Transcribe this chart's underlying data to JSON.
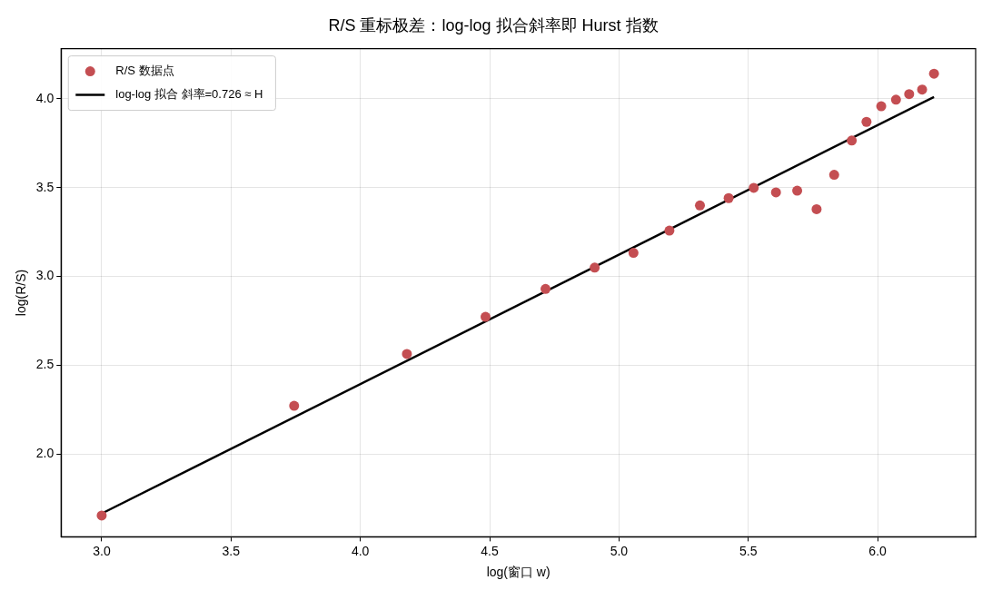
{
  "chart_data": {
    "type": "scatter",
    "title": "R/S 重标极差：log-log 拟合斜率即 Hurst 指数",
    "xlabel": "log(窗口 w)",
    "ylabel": "log(R/S)",
    "series": [
      {
        "name": "R/S 数据点",
        "color": "#c44e52",
        "marker": "circle",
        "x": [
          3.0,
          3.744,
          4.18,
          4.484,
          4.716,
          4.906,
          5.056,
          5.195,
          5.313,
          5.424,
          5.521,
          5.607,
          5.689,
          5.764,
          5.832,
          5.9,
          5.957,
          6.014,
          6.071,
          6.122,
          6.172,
          6.218
        ],
        "values": [
          1.655,
          2.272,
          2.564,
          2.773,
          2.93,
          3.05,
          3.133,
          3.258,
          3.4,
          3.441,
          3.499,
          3.473,
          3.483,
          3.379,
          3.572,
          3.765,
          3.87,
          3.958,
          3.995,
          4.026,
          4.052,
          4.141
        ]
      },
      {
        "name": "log-log 拟合 斜率=0.726 ≈ H",
        "type": "line",
        "color": "#000000",
        "marker": "none",
        "line_style": "solid",
        "x": [
          3.0,
          6.218
        ],
        "values": [
          1.666,
          4.01
        ]
      }
    ],
    "xlim": [
      2.843,
      6.379
    ],
    "ylim": [
      1.535,
      4.282
    ],
    "xticks": [
      {
        "value": 3,
        "label": "3.0"
      },
      {
        "value": 3.5,
        "label": "3.5"
      },
      {
        "value": 4,
        "label": "4.0"
      },
      {
        "value": 4.5,
        "label": "4.5"
      },
      {
        "value": 5,
        "label": "5.0"
      },
      {
        "value": 5.5,
        "label": "5.5"
      },
      {
        "value": 6,
        "label": "6.0"
      }
    ],
    "yticks": [
      {
        "value": 2,
        "label": "2.0"
      },
      {
        "value": 2.5,
        "label": "2.5"
      },
      {
        "value": 3,
        "label": "3.0"
      },
      {
        "value": 3.5,
        "label": "3.5"
      },
      {
        "value": 4,
        "label": "4.0"
      }
    ],
    "grid": true,
    "legend": "top left"
  }
}
